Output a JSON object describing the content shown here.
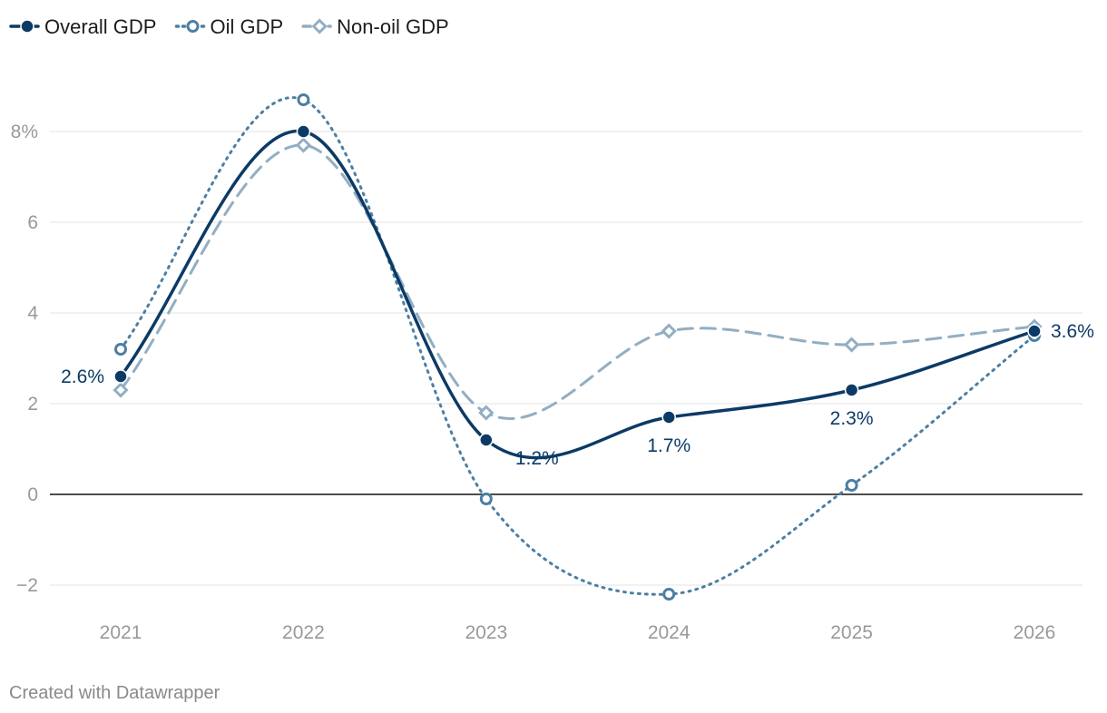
{
  "chart_data": {
    "type": "line",
    "title": "",
    "xlabel": "",
    "ylabel": "",
    "categories": [
      "2021",
      "2022",
      "2023",
      "2024",
      "2025",
      "2026"
    ],
    "ylim": [
      -2.7,
      9.5
    ],
    "yticks": [
      -2,
      0,
      2,
      4,
      6,
      8
    ],
    "ytick_labels": [
      "−2",
      "0",
      "2",
      "4",
      "6",
      "8%"
    ],
    "legend_position": "top-left",
    "grid": true,
    "series": [
      {
        "name": "Overall GDP",
        "values": [
          2.6,
          8.0,
          1.2,
          1.7,
          2.3,
          3.6
        ],
        "color": "#0c3a66",
        "style": "solid",
        "marker": "filled-circle",
        "labels": [
          "2.6%",
          null,
          "1.2%",
          "1.7%",
          "2.3%",
          "3.6%"
        ]
      },
      {
        "name": "Oil GDP",
        "values": [
          3.2,
          8.7,
          -0.1,
          -2.2,
          0.2,
          3.5
        ],
        "color": "#4c7fa3",
        "style": "dotted",
        "marker": "hollow-circle"
      },
      {
        "name": "Non-oil GDP",
        "values": [
          2.3,
          7.7,
          1.8,
          3.6,
          3.3,
          3.7
        ],
        "color": "#92aec3",
        "style": "dashed",
        "marker": "hollow-diamond"
      }
    ]
  },
  "footer": {
    "credit": "Created with Datawrapper"
  }
}
